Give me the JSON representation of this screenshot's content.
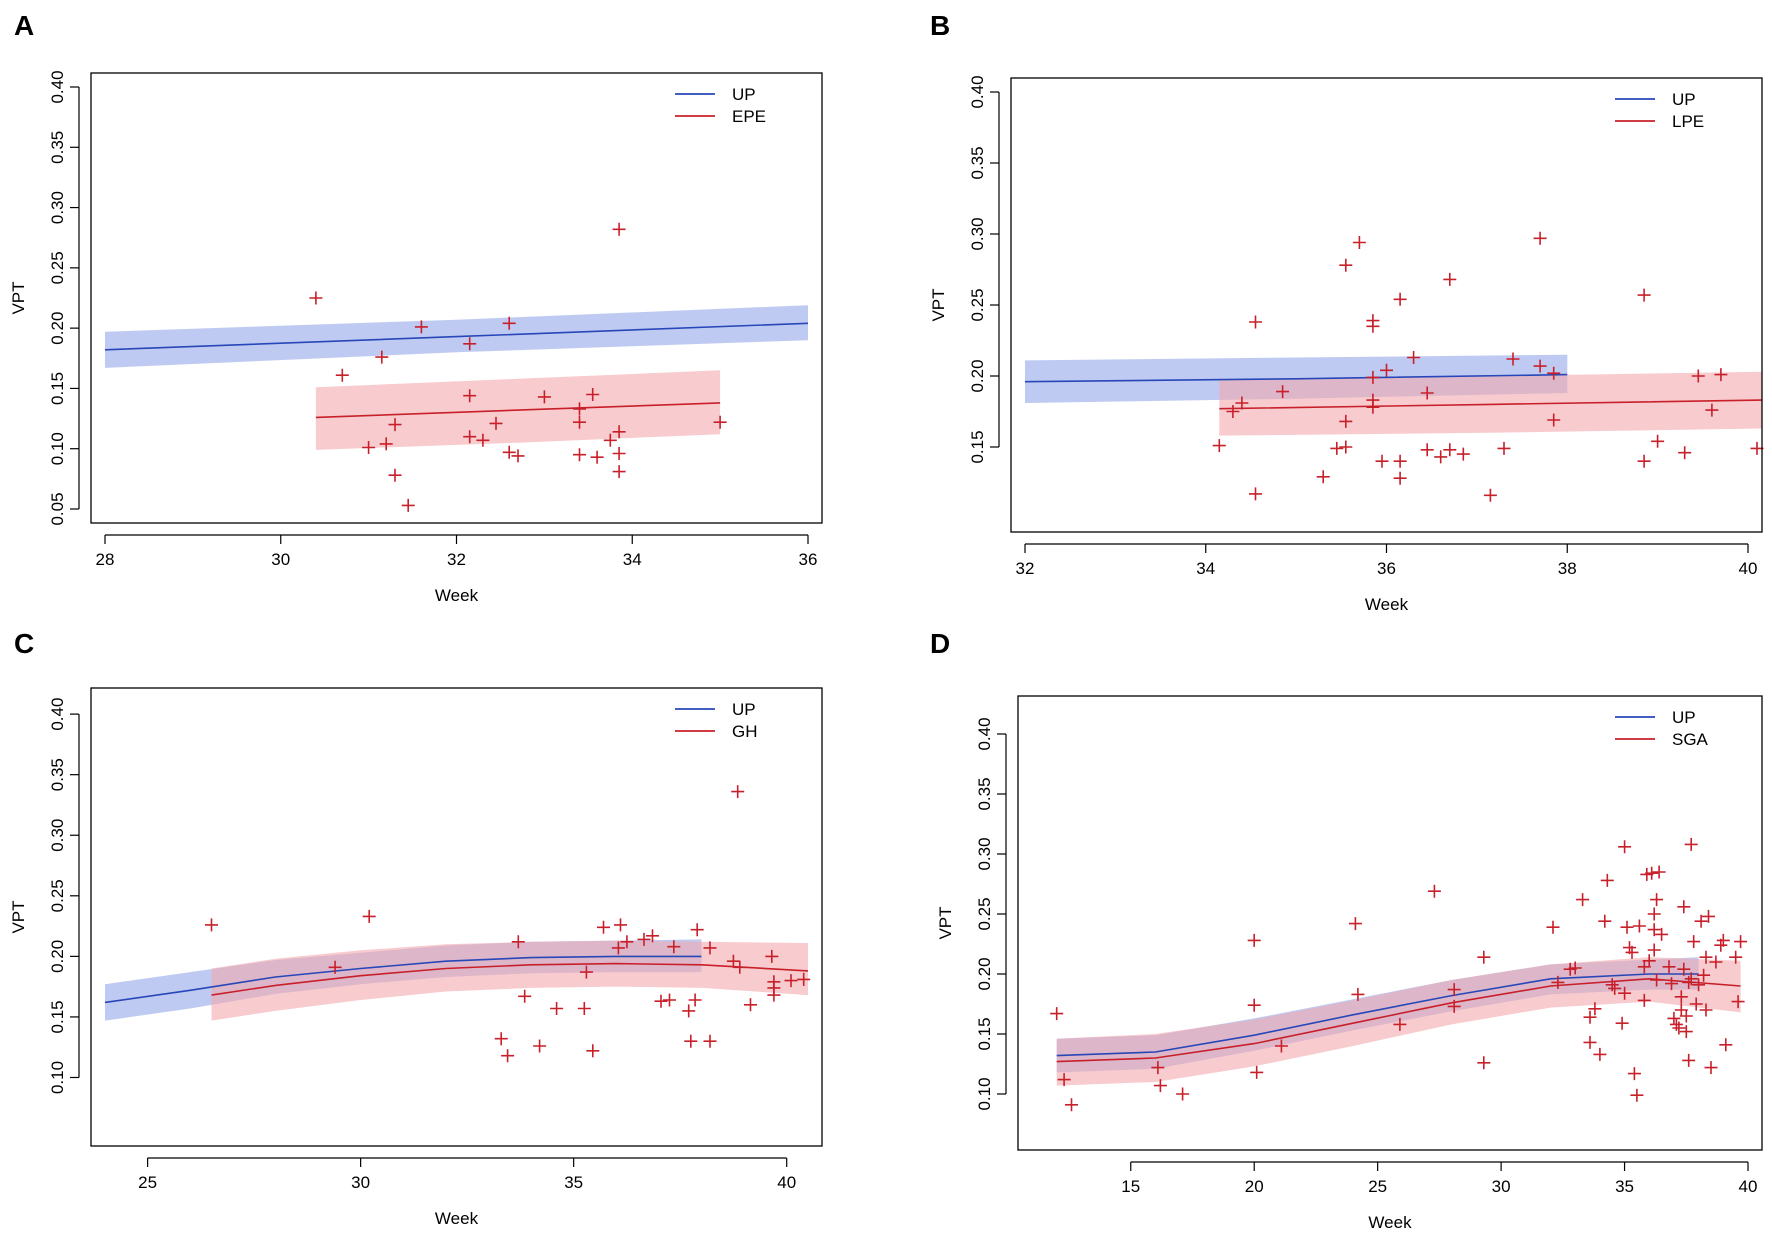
{
  "colors": {
    "up_line": "#2747b8",
    "up_band": "#a9b8ee",
    "pe_line": "#c8202a",
    "pe_band": "#f3a9ad",
    "point": "#c8202a"
  },
  "chart_data": [
    {
      "panel": "A",
      "type": "scatter",
      "xlabel": "Week",
      "ylabel": "VPT",
      "xlim": [
        28,
        36
      ],
      "ylim": [
        0.05,
        0.4
      ],
      "xticks": [
        28,
        30,
        32,
        34,
        36
      ],
      "yticks": [
        0.05,
        0.1,
        0.15,
        0.2,
        0.25,
        0.3,
        0.35,
        0.4
      ],
      "ytick_labels": [
        "0.05",
        "0.10",
        "0.15",
        "0.20",
        "0.25",
        "0.30",
        "0.35",
        "0.40"
      ],
      "legend": [
        "UP",
        "EPE"
      ],
      "series": [
        {
          "name": "UP",
          "color_key": "up",
          "x": [
            28,
            32,
            36
          ],
          "fit": [
            0.182,
            0.193,
            0.204
          ],
          "lower": [
            0.167,
            0.18,
            0.19
          ],
          "upper": [
            0.197,
            0.207,
            0.219
          ]
        },
        {
          "name": "EPE",
          "color_key": "pe",
          "x": [
            30.4,
            32.7,
            35.0
          ],
          "fit": [
            0.126,
            0.132,
            0.138
          ],
          "lower": [
            0.099,
            0.105,
            0.112
          ],
          "upper": [
            0.151,
            0.158,
            0.165
          ]
        }
      ],
      "points": [
        [
          30.4,
          0.225
        ],
        [
          30.7,
          0.161
        ],
        [
          31.0,
          0.101
        ],
        [
          31.2,
          0.104
        ],
        [
          31.15,
          0.176
        ],
        [
          31.3,
          0.12
        ],
        [
          31.3,
          0.078
        ],
        [
          31.45,
          0.053
        ],
        [
          31.6,
          0.201
        ],
        [
          32.15,
          0.187
        ],
        [
          32.15,
          0.144
        ],
        [
          32.15,
          0.11
        ],
        [
          32.3,
          0.107
        ],
        [
          32.45,
          0.121
        ],
        [
          32.6,
          0.204
        ],
        [
          32.6,
          0.097
        ],
        [
          32.7,
          0.094
        ],
        [
          33.0,
          0.143
        ],
        [
          33.4,
          0.133
        ],
        [
          33.4,
          0.122
        ],
        [
          33.4,
          0.095
        ],
        [
          33.55,
          0.145
        ],
        [
          33.6,
          0.093
        ],
        [
          33.75,
          0.107
        ],
        [
          33.85,
          0.114
        ],
        [
          33.85,
          0.096
        ],
        [
          33.85,
          0.081
        ],
        [
          33.85,
          0.282
        ],
        [
          35.0,
          0.122
        ]
      ]
    },
    {
      "panel": "B",
      "type": "scatter",
      "xlabel": "Week",
      "ylabel": "VPT",
      "xlim": [
        32,
        40
      ],
      "ylim": [
        0.1,
        0.4
      ],
      "xticks": [
        32,
        34,
        36,
        38,
        40
      ],
      "yticks": [
        0.15,
        0.2,
        0.25,
        0.3,
        0.35,
        0.4
      ],
      "ytick_labels": [
        "0.15",
        "0.20",
        "0.25",
        "0.30",
        "0.35",
        "0.40"
      ],
      "legend": [
        "UP",
        "LPE"
      ],
      "series": [
        {
          "name": "UP",
          "color_key": "up",
          "x": [
            32,
            35,
            38
          ],
          "fit": [
            0.196,
            0.198,
            0.201
          ],
          "lower": [
            0.181,
            0.184,
            0.188
          ],
          "upper": [
            0.211,
            0.213,
            0.215
          ]
        },
        {
          "name": "LPE",
          "color_key": "pe",
          "x": [
            34.15,
            37.15,
            40.15
          ],
          "fit": [
            0.177,
            0.18,
            0.183
          ],
          "lower": [
            0.158,
            0.16,
            0.163
          ],
          "upper": [
            0.197,
            0.2,
            0.203
          ]
        }
      ],
      "points": [
        [
          34.15,
          0.151
        ],
        [
          34.3,
          0.175
        ],
        [
          34.4,
          0.181
        ],
        [
          34.55,
          0.238
        ],
        [
          34.55,
          0.117
        ],
        [
          34.85,
          0.189
        ],
        [
          35.3,
          0.129
        ],
        [
          35.45,
          0.149
        ],
        [
          35.55,
          0.278
        ],
        [
          35.55,
          0.168
        ],
        [
          35.55,
          0.15
        ],
        [
          35.7,
          0.294
        ],
        [
          35.85,
          0.239
        ],
        [
          35.85,
          0.235
        ],
        [
          35.85,
          0.199
        ],
        [
          35.85,
          0.183
        ],
        [
          35.85,
          0.178
        ],
        [
          35.95,
          0.14
        ],
        [
          36.0,
          0.204
        ],
        [
          36.15,
          0.254
        ],
        [
          36.15,
          0.14
        ],
        [
          36.15,
          0.128
        ],
        [
          36.3,
          0.213
        ],
        [
          36.45,
          0.188
        ],
        [
          36.45,
          0.148
        ],
        [
          36.6,
          0.143
        ],
        [
          36.7,
          0.268
        ],
        [
          36.7,
          0.148
        ],
        [
          36.85,
          0.145
        ],
        [
          37.15,
          0.116
        ],
        [
          37.3,
          0.149
        ],
        [
          37.4,
          0.212
        ],
        [
          37.7,
          0.297
        ],
        [
          37.7,
          0.207
        ],
        [
          37.85,
          0.202
        ],
        [
          37.85,
          0.169
        ],
        [
          38.85,
          0.257
        ],
        [
          38.85,
          0.14
        ],
        [
          39.0,
          0.154
        ],
        [
          39.3,
          0.146
        ],
        [
          39.45,
          0.2
        ],
        [
          39.6,
          0.176
        ],
        [
          39.7,
          0.201
        ],
        [
          40.1,
          0.149
        ]
      ]
    },
    {
      "panel": "C",
      "type": "scatter",
      "xlabel": "Week",
      "ylabel": "VPT",
      "xlim": [
        24,
        40.5
      ],
      "ylim": [
        0.055,
        0.41
      ],
      "xticks": [
        25,
        30,
        35,
        40
      ],
      "yticks": [
        0.1,
        0.15,
        0.2,
        0.25,
        0.3,
        0.35,
        0.4
      ],
      "ytick_labels": [
        "0.10",
        "0.15",
        "0.20",
        "0.25",
        "0.30",
        "0.35",
        "0.40"
      ],
      "legend": [
        "UP",
        "GH"
      ],
      "series": [
        {
          "name": "UP",
          "color_key": "up",
          "x": [
            24,
            26,
            28,
            30,
            32,
            34,
            36,
            38
          ],
          "fit": [
            0.162,
            0.172,
            0.183,
            0.19,
            0.196,
            0.199,
            0.2,
            0.2
          ],
          "lower": [
            0.147,
            0.157,
            0.169,
            0.177,
            0.183,
            0.186,
            0.187,
            0.187
          ],
          "upper": [
            0.177,
            0.187,
            0.197,
            0.203,
            0.209,
            0.212,
            0.213,
            0.214
          ]
        },
        {
          "name": "GH",
          "color_key": "pe",
          "x": [
            26.5,
            28,
            30,
            32,
            34,
            36,
            38,
            40.5
          ],
          "fit": [
            0.168,
            0.176,
            0.184,
            0.19,
            0.193,
            0.194,
            0.193,
            0.188
          ],
          "lower": [
            0.147,
            0.155,
            0.164,
            0.171,
            0.174,
            0.175,
            0.174,
            0.168
          ],
          "upper": [
            0.19,
            0.198,
            0.205,
            0.21,
            0.212,
            0.213,
            0.212,
            0.211
          ]
        }
      ],
      "points": [
        [
          26.5,
          0.226
        ],
        [
          29.4,
          0.191
        ],
        [
          30.2,
          0.233
        ],
        [
          33.3,
          0.132
        ],
        [
          33.45,
          0.118
        ],
        [
          33.7,
          0.212
        ],
        [
          33.85,
          0.167
        ],
        [
          34.2,
          0.126
        ],
        [
          34.6,
          0.157
        ],
        [
          35.25,
          0.157
        ],
        [
          35.3,
          0.187
        ],
        [
          35.45,
          0.122
        ],
        [
          35.7,
          0.224
        ],
        [
          36.05,
          0.207
        ],
        [
          36.1,
          0.226
        ],
        [
          36.25,
          0.212
        ],
        [
          36.65,
          0.214
        ],
        [
          36.85,
          0.217
        ],
        [
          37.05,
          0.163
        ],
        [
          37.25,
          0.164
        ],
        [
          37.35,
          0.208
        ],
        [
          37.7,
          0.155
        ],
        [
          37.75,
          0.13
        ],
        [
          37.85,
          0.164
        ],
        [
          37.9,
          0.222
        ],
        [
          38.2,
          0.13
        ],
        [
          38.2,
          0.207
        ],
        [
          38.85,
          0.336
        ],
        [
          38.75,
          0.196
        ],
        [
          38.9,
          0.191
        ],
        [
          39.15,
          0.16
        ],
        [
          39.65,
          0.2
        ],
        [
          39.7,
          0.179
        ],
        [
          39.7,
          0.174
        ],
        [
          39.7,
          0.168
        ],
        [
          40.1,
          0.18
        ],
        [
          40.4,
          0.181
        ]
      ]
    },
    {
      "panel": "D",
      "type": "scatter",
      "xlabel": "Week",
      "ylabel": "VPT",
      "xlim": [
        11,
        40
      ],
      "ylim": [
        0.065,
        0.42
      ],
      "xticks": [
        15,
        20,
        25,
        30,
        35,
        40
      ],
      "yticks": [
        0.1,
        0.15,
        0.2,
        0.25,
        0.3,
        0.35,
        0.4
      ],
      "ytick_labels": [
        "0.10",
        "0.15",
        "0.20",
        "0.25",
        "0.30",
        "0.35",
        "0.40"
      ],
      "legend": [
        "UP",
        "SGA"
      ],
      "series": [
        {
          "name": "UP",
          "color_key": "up",
          "x": [
            12,
            16,
            20,
            24,
            28,
            32,
            36,
            38
          ],
          "fit": [
            0.132,
            0.135,
            0.149,
            0.166,
            0.182,
            0.196,
            0.2,
            0.2
          ],
          "lower": [
            0.118,
            0.121,
            0.136,
            0.153,
            0.169,
            0.183,
            0.187,
            0.187
          ],
          "upper": [
            0.146,
            0.149,
            0.163,
            0.179,
            0.195,
            0.208,
            0.212,
            0.214
          ]
        },
        {
          "name": "SGA",
          "color_key": "pe",
          "x": [
            12,
            16,
            20,
            24,
            28,
            32,
            36,
            39.7
          ],
          "fit": [
            0.127,
            0.13,
            0.142,
            0.159,
            0.176,
            0.19,
            0.196,
            0.19
          ],
          "lower": [
            0.107,
            0.11,
            0.123,
            0.14,
            0.158,
            0.172,
            0.177,
            0.168
          ],
          "upper": [
            0.146,
            0.15,
            0.162,
            0.178,
            0.195,
            0.208,
            0.214,
            0.211
          ]
        }
      ],
      "points": [
        [
          12.0,
          0.167
        ],
        [
          12.3,
          0.112
        ],
        [
          12.6,
          0.091
        ],
        [
          16.1,
          0.122
        ],
        [
          16.2,
          0.107
        ],
        [
          17.1,
          0.1
        ],
        [
          20.0,
          0.228
        ],
        [
          20.0,
          0.174
        ],
        [
          20.1,
          0.118
        ],
        [
          21.1,
          0.14
        ],
        [
          24.1,
          0.242
        ],
        [
          24.2,
          0.183
        ],
        [
          25.9,
          0.158
        ],
        [
          27.3,
          0.269
        ],
        [
          28.1,
          0.187
        ],
        [
          28.1,
          0.173
        ],
        [
          29.3,
          0.214
        ],
        [
          29.3,
          0.126
        ],
        [
          32.1,
          0.239
        ],
        [
          32.3,
          0.193
        ],
        [
          32.8,
          0.204
        ],
        [
          33.0,
          0.205
        ],
        [
          33.3,
          0.262
        ],
        [
          33.6,
          0.164
        ],
        [
          33.6,
          0.143
        ],
        [
          33.8,
          0.171
        ],
        [
          34.0,
          0.133
        ],
        [
          34.2,
          0.244
        ],
        [
          34.3,
          0.278
        ],
        [
          34.5,
          0.191
        ],
        [
          34.6,
          0.188
        ],
        [
          34.9,
          0.159
        ],
        [
          35.0,
          0.306
        ],
        [
          35.0,
          0.184
        ],
        [
          35.1,
          0.239
        ],
        [
          35.2,
          0.222
        ],
        [
          35.3,
          0.218
        ],
        [
          35.4,
          0.117
        ],
        [
          35.5,
          0.099
        ],
        [
          35.6,
          0.24
        ],
        [
          35.8,
          0.206
        ],
        [
          35.8,
          0.178
        ],
        [
          35.9,
          0.283
        ],
        [
          36.0,
          0.211
        ],
        [
          36.1,
          0.284
        ],
        [
          36.2,
          0.25
        ],
        [
          36.2,
          0.237
        ],
        [
          36.2,
          0.22
        ],
        [
          36.3,
          0.262
        ],
        [
          36.3,
          0.195
        ],
        [
          36.4,
          0.285
        ],
        [
          36.5,
          0.233
        ],
        [
          36.8,
          0.206
        ],
        [
          36.9,
          0.192
        ],
        [
          37.0,
          0.163
        ],
        [
          37.1,
          0.158
        ],
        [
          37.2,
          0.155
        ],
        [
          37.3,
          0.181
        ],
        [
          37.3,
          0.17
        ],
        [
          37.4,
          0.256
        ],
        [
          37.4,
          0.204
        ],
        [
          37.5,
          0.165
        ],
        [
          37.5,
          0.152
        ],
        [
          37.6,
          0.128
        ],
        [
          37.6,
          0.193
        ],
        [
          37.7,
          0.308
        ],
        [
          37.7,
          0.196
        ],
        [
          37.8,
          0.227
        ],
        [
          37.9,
          0.175
        ],
        [
          38.0,
          0.191
        ],
        [
          38.1,
          0.244
        ],
        [
          38.2,
          0.199
        ],
        [
          38.3,
          0.214
        ],
        [
          38.3,
          0.17
        ],
        [
          38.4,
          0.248
        ],
        [
          38.5,
          0.122
        ],
        [
          38.7,
          0.21
        ],
        [
          38.9,
          0.224
        ],
        [
          39.0,
          0.228
        ],
        [
          39.1,
          0.141
        ],
        [
          39.5,
          0.214
        ],
        [
          39.6,
          0.177
        ],
        [
          39.7,
          0.227
        ]
      ]
    }
  ]
}
